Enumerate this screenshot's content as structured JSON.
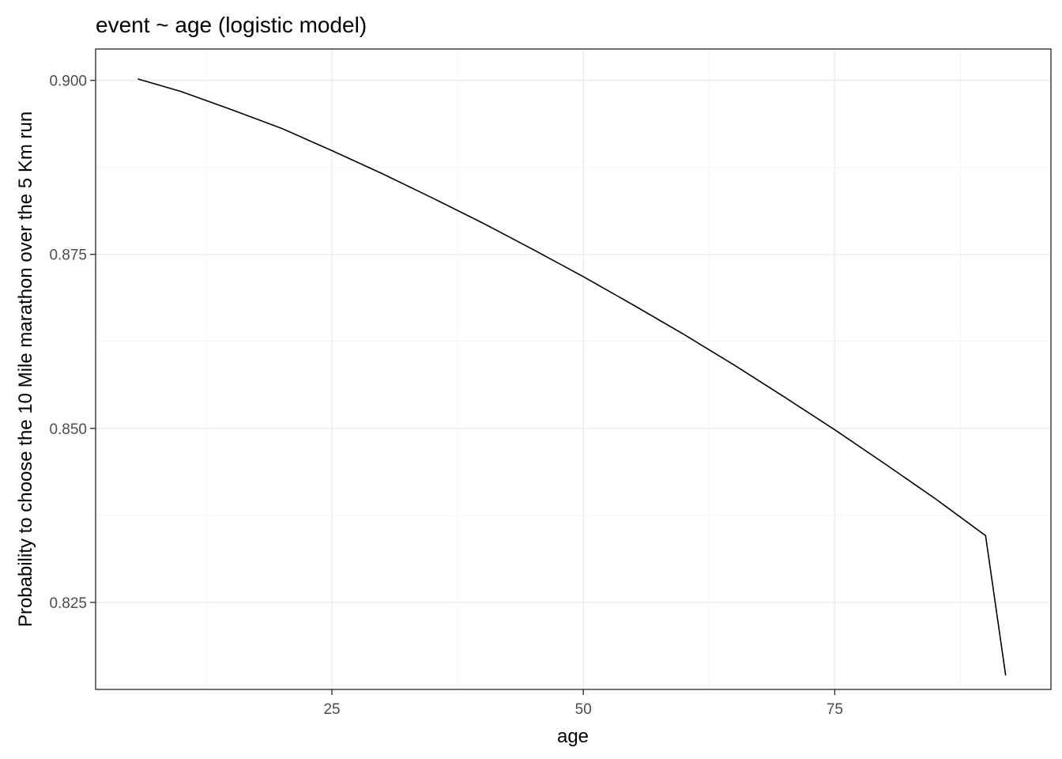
{
  "chart_data": {
    "type": "line",
    "title": "event ~ age (logistic model)",
    "xlabel": "age",
    "ylabel": "Probability to choose the 10 Mile marathon over the 5 Km run",
    "xlim": [
      1.5,
      96.5
    ],
    "ylim": [
      0.8125,
      0.9045
    ],
    "x_major_ticks": [
      25,
      50,
      75
    ],
    "x_minor_ticks": [
      12.5,
      37.5,
      62.5,
      87.5
    ],
    "y_major_ticks": [
      0.825,
      0.85,
      0.875,
      0.9
    ],
    "y_minor_ticks": [
      0.8125,
      0.8375,
      0.8625,
      0.8875
    ],
    "x_tick_labels": [
      "25",
      "50",
      "75"
    ],
    "y_tick_labels": [
      "0.825",
      "0.850",
      "0.875",
      "0.900"
    ],
    "grid": true,
    "line_color": "#000000",
    "series": [
      {
        "x": [
          5.7,
          10,
          15,
          20,
          25,
          30,
          35,
          40,
          45,
          50,
          55,
          60,
          65,
          70,
          75,
          80,
          85,
          90,
          92
        ],
        "values": [
          0.9002,
          0.8984,
          0.8958,
          0.8931,
          0.8899,
          0.8866,
          0.8831,
          0.8795,
          0.8757,
          0.8718,
          0.8677,
          0.8635,
          0.8591,
          0.8545,
          0.8498,
          0.8449,
          0.8399,
          0.8346,
          0.8145
        ]
      }
    ]
  }
}
